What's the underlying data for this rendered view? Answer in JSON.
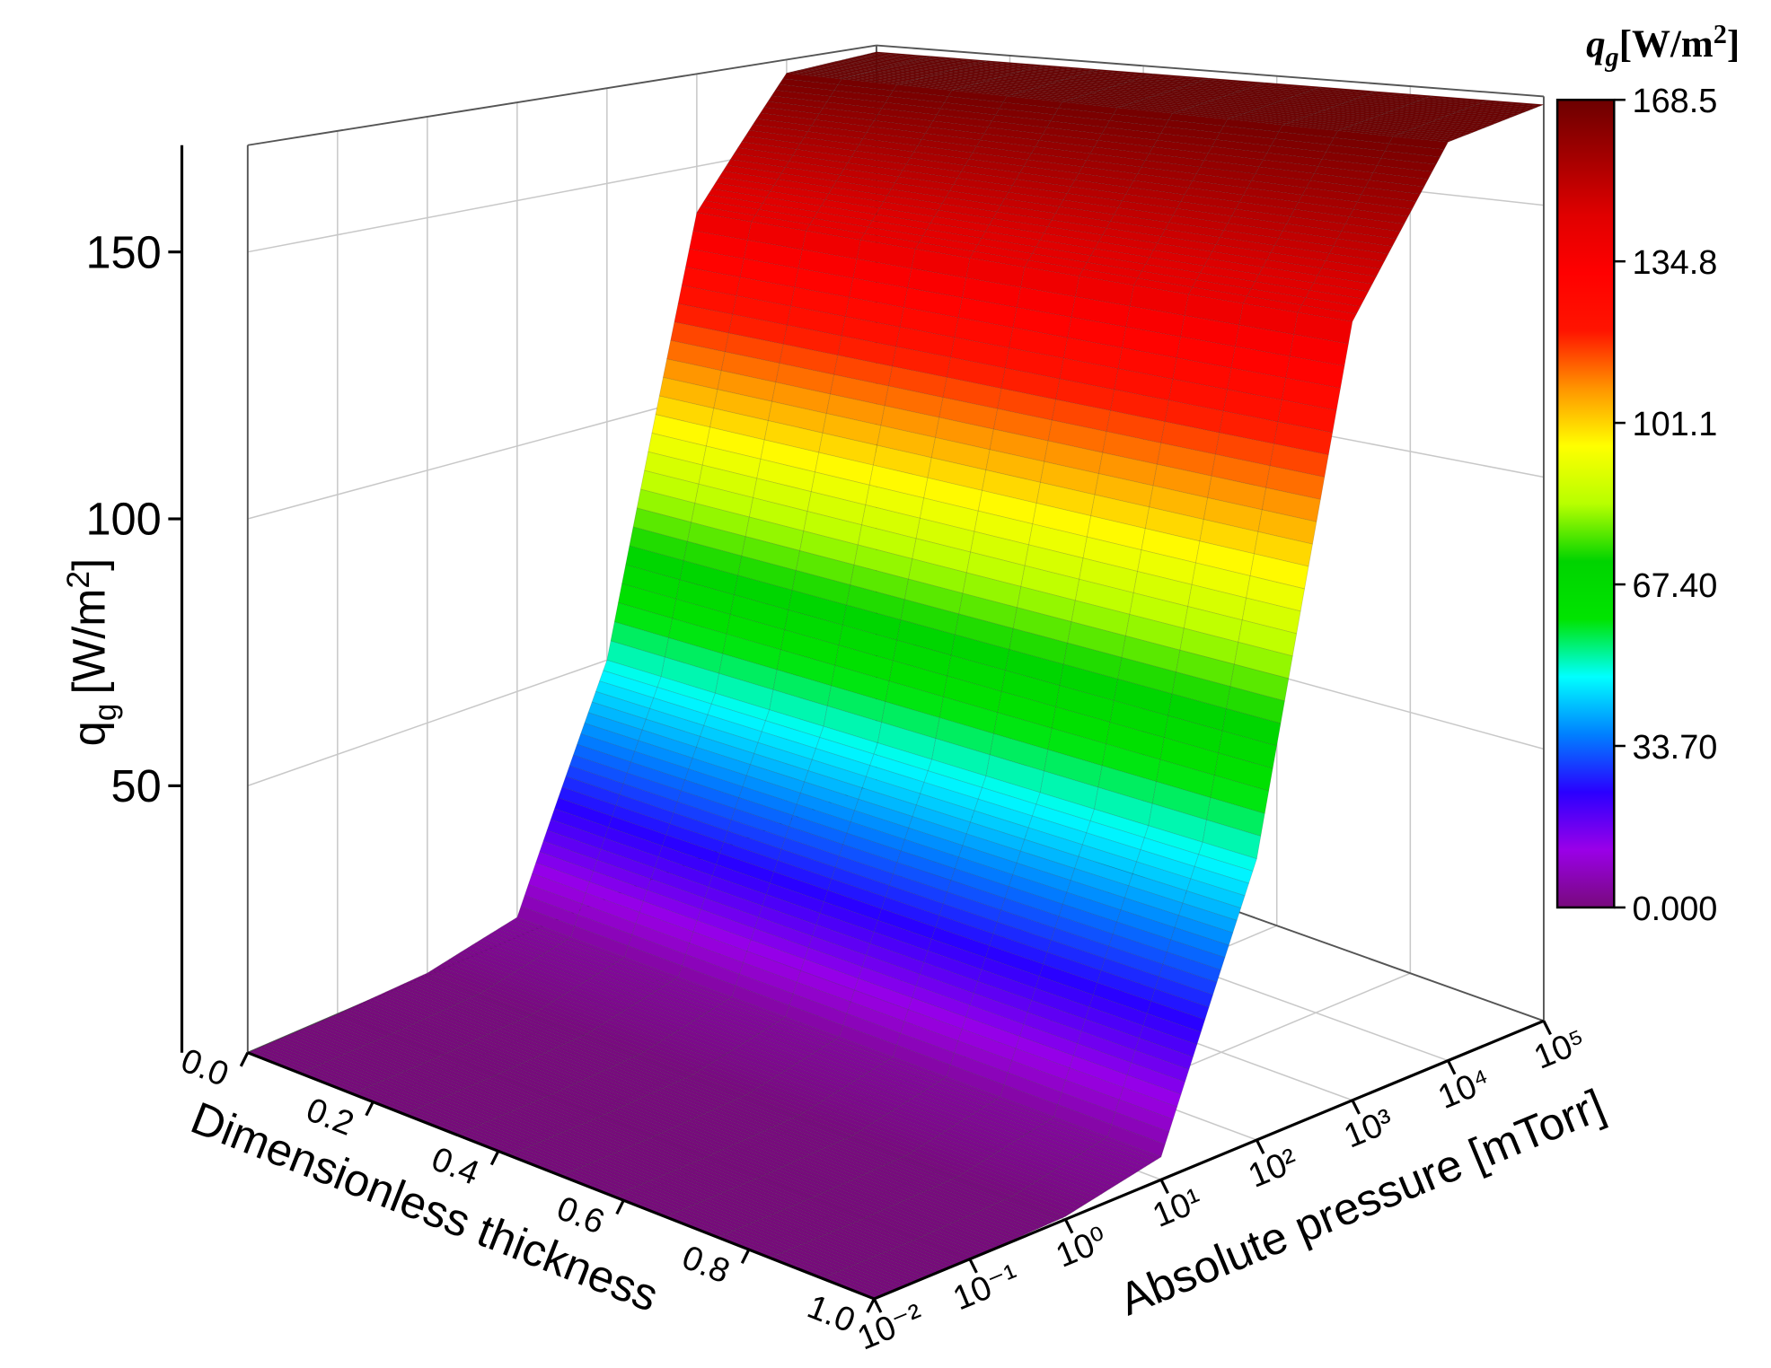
{
  "chart_data": {
    "type": "surface",
    "zlabel": {
      "symbol": "q",
      "subscript": "g",
      "unit": "[W/m",
      "power": "2",
      "close": "]"
    },
    "xlabel": "Dimensionless thickness",
    "ylabel": "Absolute pressure [mTorr]",
    "xlim": [
      0,
      1
    ],
    "xticks": [
      {
        "value": 0,
        "label": "0.0"
      },
      0.2,
      0.4,
      0.6,
      0.8,
      {
        "value": 1,
        "label": "1.0"
      }
    ],
    "ylim": [
      0.01,
      100000
    ],
    "ylog": true,
    "yticks": [
      {
        "value": 0.01,
        "label": "10⁻²"
      },
      {
        "value": 0.1,
        "label": "10⁻¹"
      },
      {
        "value": 1,
        "label": "10⁰"
      },
      {
        "value": 10,
        "label": "10¹"
      },
      {
        "value": 100,
        "label": "10²"
      },
      {
        "value": 1000,
        "label": "10³"
      },
      {
        "value": 10000,
        "label": "10⁴"
      },
      {
        "value": 100000,
        "label": "10⁵"
      }
    ],
    "zlim": [
      0,
      170
    ],
    "zticks": [
      50,
      100,
      150
    ],
    "y": [
      0.01,
      0.1,
      1,
      10,
      100,
      1000,
      10000,
      100000
    ],
    "values": [
      0,
      0,
      0.5,
      4,
      50,
      140,
      167,
      168.5
    ],
    "grid": true,
    "colorbar": {
      "title": {
        "symbol": "q",
        "subscript": "g",
        "unit": "[W/m",
        "power": "2",
        "close": "]"
      },
      "limits": [
        0,
        168.5
      ],
      "ticks": [
        {
          "value": 0,
          "label": "0.000"
        },
        {
          "value": 33.7,
          "label": "33.70"
        },
        {
          "value": 67.4,
          "label": "67.40"
        },
        101.1,
        134.8,
        168.5
      ],
      "colors": [
        "#780a7c",
        "#9a00e8",
        "#2a00ff",
        "#0080ff",
        "#00ffff",
        "#00e400",
        "#00d400",
        "#b8ff00",
        "#ffff00",
        "#ff9400",
        "#ff1400",
        "#ff0000",
        "#e00000",
        "#a40000",
        "#6c0000"
      ]
    }
  }
}
